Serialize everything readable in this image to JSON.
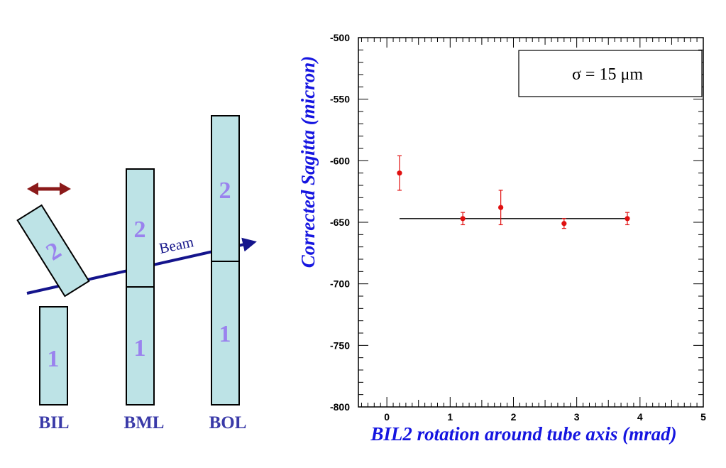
{
  "diagram": {
    "chambers": [
      {
        "name": "BIL",
        "segments": [
          "1",
          "2"
        ]
      },
      {
        "name": "BML",
        "segments": [
          "1",
          "2"
        ]
      },
      {
        "name": "BOL",
        "segments": [
          "1",
          "2"
        ]
      }
    ],
    "beam_label": "Beam",
    "colors": {
      "chamber_fill": "#bde3e6",
      "chamber_stroke": "#000000",
      "segment_number": "#9a82ee",
      "chamber_label": "#3a3aa8",
      "beam": "#14148c",
      "double_arrow": "#8b1a1a"
    }
  },
  "chart_data": {
    "type": "scatter",
    "xlabel": "BIL2 rotation around tube axis (mrad)",
    "ylabel": "Corrected Sagitta (micron)",
    "xlim": [
      -0.45,
      5
    ],
    "ylim": [
      -800,
      -500
    ],
    "x_ticks": [
      0,
      1,
      2,
      3,
      4,
      5
    ],
    "y_ticks": [
      -500,
      -550,
      -600,
      -650,
      -700,
      -750,
      -800
    ],
    "points": [
      {
        "x": 0.2,
        "y": -610,
        "err": 14
      },
      {
        "x": 1.2,
        "y": -647,
        "err": 5
      },
      {
        "x": 1.8,
        "y": -638,
        "err": 14
      },
      {
        "x": 2.8,
        "y": -651,
        "err": 4
      },
      {
        "x": 3.8,
        "y": -647,
        "err": 5
      }
    ],
    "fit_line": {
      "x": [
        0.2,
        3.8
      ],
      "y": -647
    },
    "legend": "σ = 15 μm",
    "legend_position": "top-right",
    "grid": false,
    "colors": {
      "points": "#e01010",
      "fit": "#000000",
      "axis_title": "#1515e0"
    }
  }
}
